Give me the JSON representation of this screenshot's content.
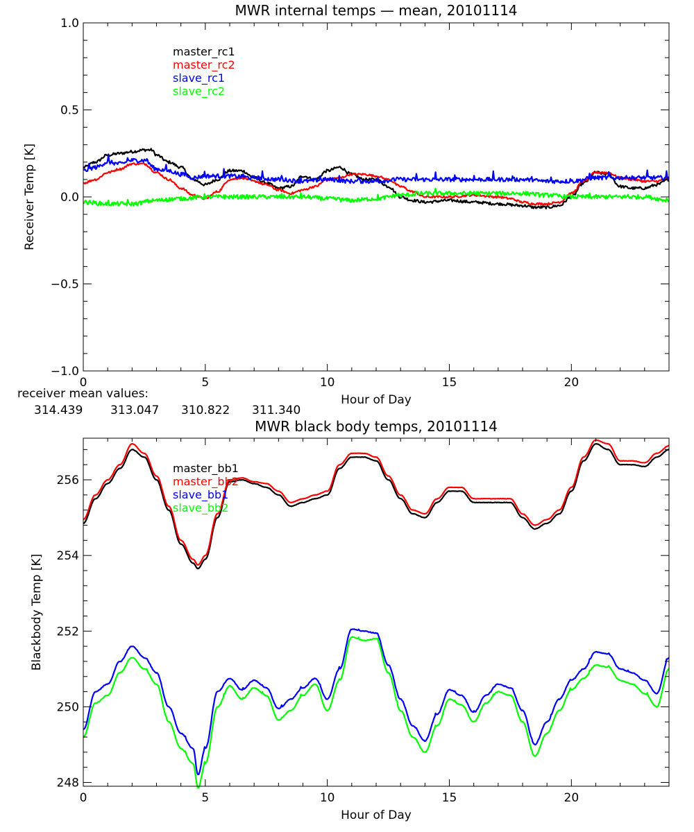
{
  "chart_data": [
    {
      "type": "line",
      "title": "MWR internal temps — mean, 20101114",
      "xlabel": "Hour of Day",
      "ylabel": "Receiver Temp [K]",
      "xlim": [
        0,
        24
      ],
      "ylim": [
        -1.0,
        1.0
      ],
      "xticks": [
        0,
        5,
        10,
        15,
        20
      ],
      "yticks": [
        -1.0,
        -0.5,
        0.0,
        0.5,
        1.0
      ],
      "ytick_labels": [
        "−1.0",
        "−0.5",
        "0.0",
        "0.5",
        "1.0"
      ],
      "legend_position": "top-left",
      "series": [
        {
          "name": "master_rc1",
          "color": "#000000",
          "noise": 0.008,
          "x": [
            0,
            0.5,
            1,
            1.5,
            2,
            2.5,
            2.8,
            3,
            3.5,
            4,
            4.5,
            5,
            5.5,
            6,
            6.5,
            7,
            7.5,
            8,
            8.5,
            9,
            9.5,
            10,
            10.5,
            11,
            11.5,
            12,
            12.5,
            13,
            13.5,
            14,
            15,
            16,
            17,
            18,
            18.5,
            19,
            19.5,
            20,
            20.5,
            21,
            21.5,
            22,
            22.5,
            23,
            23.5,
            24
          ],
          "y": [
            0.17,
            0.2,
            0.24,
            0.25,
            0.26,
            0.27,
            0.27,
            0.24,
            0.2,
            0.17,
            0.1,
            0.07,
            0.1,
            0.15,
            0.15,
            0.11,
            0.08,
            0.05,
            0.06,
            0.12,
            0.1,
            0.15,
            0.17,
            0.13,
            0.1,
            0.1,
            0.06,
            0.0,
            -0.02,
            -0.03,
            -0.02,
            -0.03,
            -0.04,
            -0.05,
            -0.06,
            -0.06,
            -0.05,
            0.0,
            0.08,
            0.14,
            0.13,
            0.06,
            0.05,
            0.05,
            0.07,
            0.1
          ]
        },
        {
          "name": "master_rc2",
          "color": "#ff0000",
          "noise": 0.006,
          "x": [
            0,
            0.5,
            1,
            1.5,
            2,
            2.5,
            3,
            3.5,
            4,
            4.5,
            5,
            5.5,
            6,
            6.5,
            7,
            7.5,
            8,
            8.5,
            9,
            9.5,
            10,
            10.5,
            11,
            11.5,
            12,
            12.5,
            13,
            13.5,
            14,
            15,
            16,
            17,
            17.5,
            18,
            18.5,
            19,
            19.5,
            20,
            20.5,
            21,
            21.5,
            22,
            22.5,
            23,
            23.5,
            24
          ],
          "y": [
            0.08,
            0.1,
            0.14,
            0.16,
            0.19,
            0.19,
            0.14,
            0.1,
            0.05,
            0.01,
            -0.01,
            0.03,
            0.1,
            0.11,
            0.09,
            0.07,
            0.04,
            0.02,
            0.04,
            0.06,
            0.1,
            0.11,
            0.13,
            0.13,
            0.12,
            0.1,
            0.06,
            0.03,
            0.0,
            0.0,
            0.01,
            0.0,
            -0.01,
            -0.03,
            -0.04,
            -0.04,
            -0.03,
            0.02,
            0.09,
            0.14,
            0.14,
            0.11,
            0.1,
            0.09,
            0.09,
            0.11
          ]
        },
        {
          "name": "slave_rc1",
          "color": "#0000ff",
          "noise": 0.012,
          "spikes": 0.04,
          "x": [
            0,
            0.5,
            1,
            1.5,
            2,
            2.5,
            3,
            3.5,
            4,
            4.5,
            5,
            6,
            7,
            8,
            9,
            10,
            11,
            12,
            13,
            14,
            15,
            16,
            17,
            18,
            19,
            20,
            21,
            22,
            23,
            24
          ],
          "y": [
            0.15,
            0.17,
            0.2,
            0.19,
            0.21,
            0.21,
            0.16,
            0.15,
            0.13,
            0.11,
            0.12,
            0.12,
            0.11,
            0.1,
            0.09,
            0.1,
            0.09,
            0.09,
            0.1,
            0.1,
            0.1,
            0.1,
            0.1,
            0.1,
            0.09,
            0.09,
            0.11,
            0.11,
            0.11,
            0.11
          ]
        },
        {
          "name": "slave_rc2",
          "color": "#00ff00",
          "noise": 0.012,
          "spikes": 0.02,
          "x": [
            0,
            1,
            2,
            3,
            4,
            5,
            6,
            7,
            8,
            9,
            10,
            11,
            12,
            13,
            14,
            15,
            16,
            17,
            18,
            19,
            20,
            21,
            22,
            23,
            24
          ],
          "y": [
            -0.03,
            -0.04,
            -0.04,
            -0.02,
            -0.01,
            0.0,
            0.0,
            0.0,
            0.0,
            0.0,
            -0.01,
            -0.02,
            -0.01,
            0.01,
            0.02,
            0.02,
            0.02,
            0.02,
            0.02,
            0.01,
            0.0,
            0.0,
            0.0,
            0.0,
            -0.02
          ]
        }
      ]
    },
    {
      "type": "line",
      "title": "MWR black body temps, 20101114",
      "xlabel": "Hour of Day",
      "ylabel": "Blackbody Temp [K]",
      "xlim": [
        0,
        24
      ],
      "ylim": [
        247.9,
        257.1
      ],
      "xticks": [
        0,
        5,
        10,
        15,
        20
      ],
      "yticks": [
        248,
        250,
        252,
        254,
        256
      ],
      "ytick_labels": [
        "248",
        "250",
        "252",
        "254",
        "256"
      ],
      "legend_position": "top-left",
      "series": [
        {
          "name": "master_bb1",
          "color": "#000000",
          "noise": 0.005,
          "x": [
            0,
            0.5,
            1,
            1.5,
            2,
            2.5,
            3,
            3.5,
            4,
            4.5,
            4.7,
            5,
            5.5,
            6,
            6.5,
            7,
            7.5,
            8,
            8.5,
            9,
            9.5,
            10,
            10.5,
            11,
            11.5,
            12,
            12.5,
            13,
            13.5,
            14,
            14.5,
            15,
            15.5,
            16,
            16.5,
            17,
            17.5,
            18,
            18.5,
            19,
            19.5,
            20,
            20.5,
            21,
            21.5,
            22,
            22.5,
            23,
            23.5,
            24
          ],
          "y": [
            254.85,
            255.5,
            255.9,
            256.3,
            256.8,
            256.6,
            256.0,
            255.2,
            254.3,
            253.8,
            253.65,
            253.9,
            255.0,
            255.95,
            256.0,
            255.9,
            255.8,
            255.6,
            255.3,
            255.4,
            255.5,
            255.6,
            256.3,
            256.6,
            256.6,
            256.5,
            256.0,
            255.5,
            255.1,
            255.0,
            255.4,
            255.7,
            255.7,
            255.4,
            255.4,
            255.4,
            255.4,
            255.0,
            254.7,
            254.85,
            255.1,
            255.7,
            256.5,
            256.95,
            256.8,
            256.4,
            256.4,
            256.35,
            256.6,
            256.8
          ]
        },
        {
          "name": "master_bb2",
          "color": "#ff0000",
          "noise": 0.005,
          "x": [
            0,
            0.5,
            1,
            1.5,
            2,
            2.5,
            3,
            3.5,
            4,
            4.5,
            4.7,
            5,
            5.5,
            6,
            6.5,
            7,
            7.5,
            8,
            8.5,
            9,
            9.5,
            10,
            10.5,
            11,
            11.5,
            12,
            12.5,
            13,
            13.5,
            14,
            14.5,
            15,
            15.5,
            16,
            16.5,
            17,
            17.5,
            18,
            18.5,
            19,
            19.5,
            20,
            20.5,
            21,
            21.5,
            22,
            22.5,
            23,
            23.5,
            24
          ],
          "y": [
            254.95,
            255.6,
            256.0,
            256.4,
            256.95,
            256.7,
            256.1,
            255.3,
            254.4,
            253.9,
            253.75,
            254.0,
            255.1,
            256.0,
            256.05,
            255.95,
            255.9,
            255.7,
            255.4,
            255.5,
            255.6,
            255.7,
            256.4,
            256.7,
            256.7,
            256.6,
            256.1,
            255.6,
            255.2,
            255.1,
            255.5,
            255.8,
            255.8,
            255.5,
            255.5,
            255.5,
            255.5,
            255.1,
            254.8,
            254.95,
            255.2,
            255.8,
            256.6,
            257.05,
            256.95,
            256.5,
            256.5,
            256.45,
            256.7,
            256.9
          ]
        },
        {
          "name": "slave_bb1",
          "color": "#0000ff",
          "noise": 0.01,
          "spikes": 0.06,
          "x": [
            0,
            0.5,
            1,
            1.5,
            2,
            2.5,
            3,
            3.5,
            4,
            4.5,
            4.7,
            5,
            5.5,
            6,
            6.5,
            7,
            7.5,
            8,
            8.5,
            9,
            9.5,
            10,
            10.5,
            11,
            11.5,
            12,
            12.5,
            13,
            13.5,
            14,
            14.5,
            15,
            15.5,
            16,
            16.5,
            17,
            17.5,
            18,
            18.5,
            19,
            19.5,
            20,
            20.5,
            21,
            21.5,
            22,
            22.5,
            23,
            23.5,
            24
          ],
          "y": [
            249.4,
            250.4,
            250.6,
            251.2,
            251.6,
            251.3,
            250.9,
            250.0,
            249.3,
            248.9,
            248.2,
            248.9,
            250.4,
            250.75,
            250.45,
            250.7,
            250.5,
            249.95,
            250.2,
            250.5,
            250.75,
            250.2,
            251.0,
            252.05,
            252.0,
            251.95,
            251.1,
            250.2,
            249.5,
            249.1,
            249.8,
            250.45,
            250.3,
            249.85,
            250.3,
            250.6,
            250.5,
            249.9,
            249.0,
            249.6,
            250.2,
            250.7,
            251.0,
            251.45,
            251.4,
            251.0,
            250.9,
            250.7,
            250.35,
            251.3
          ]
        },
        {
          "name": "slave_bb2",
          "color": "#00ff00",
          "noise": 0.01,
          "spikes": 0.06,
          "x": [
            0,
            0.5,
            1,
            1.5,
            2,
            2.5,
            3,
            3.5,
            4,
            4.5,
            4.7,
            5,
            5.5,
            6,
            6.5,
            7,
            7.5,
            8,
            8.5,
            9,
            9.5,
            10,
            10.5,
            11,
            11.5,
            12,
            12.5,
            13,
            13.5,
            14,
            14.5,
            15,
            15.5,
            16,
            16.5,
            17,
            17.5,
            18,
            18.5,
            19,
            19.5,
            20,
            20.5,
            21,
            21.5,
            22,
            22.5,
            23,
            23.5,
            24
          ],
          "y": [
            249.2,
            250.1,
            250.3,
            250.9,
            251.3,
            251.0,
            250.6,
            249.6,
            248.9,
            248.5,
            247.85,
            248.5,
            250.0,
            250.55,
            250.2,
            250.5,
            250.3,
            249.65,
            249.9,
            250.3,
            250.6,
            249.9,
            250.7,
            251.85,
            251.75,
            251.8,
            250.9,
            249.9,
            249.2,
            248.8,
            249.5,
            250.2,
            250.05,
            249.6,
            250.1,
            250.4,
            250.3,
            249.6,
            248.7,
            249.3,
            249.9,
            250.45,
            250.75,
            251.1,
            251.05,
            250.7,
            250.6,
            250.35,
            250.0,
            251.0
          ]
        }
      ]
    }
  ],
  "receiver_mean_label": "receiver mean values:",
  "receiver_means": [
    {
      "value": "314.439",
      "color": "#000000"
    },
    {
      "value": "313.047",
      "color": "#ff0000"
    },
    {
      "value": "310.822",
      "color": "#0000ff"
    },
    {
      "value": "311.340",
      "color": "#00ff00"
    }
  ]
}
